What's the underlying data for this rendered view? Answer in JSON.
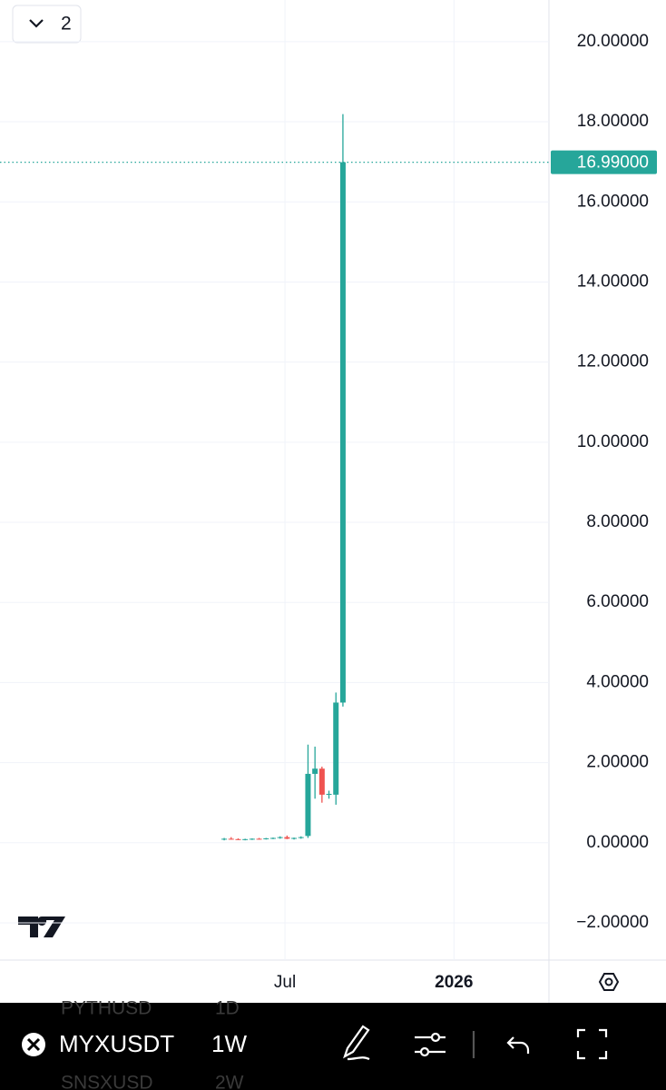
{
  "chart_data": {
    "type": "candlestick",
    "categories": [
      null,
      null,
      null,
      null,
      null,
      null,
      null,
      null,
      null,
      null,
      null,
      null,
      null,
      null,
      null,
      null,
      null,
      null
    ],
    "series": [
      {
        "name": "open",
        "values": [
          0.08,
          0.1,
          0.09,
          0.08,
          0.09,
          0.1,
          0.09,
          0.11,
          0.12,
          0.14,
          0.1,
          0.12,
          0.17,
          1.72,
          1.85,
          1.2,
          1.2,
          3.5
        ]
      },
      {
        "name": "high",
        "values": [
          0.12,
          0.14,
          0.11,
          0.1,
          0.11,
          0.12,
          0.12,
          0.13,
          0.16,
          0.18,
          0.13,
          0.16,
          2.45,
          2.4,
          1.9,
          1.3,
          3.75,
          18.19
        ]
      },
      {
        "name": "low",
        "values": [
          0.06,
          0.08,
          0.07,
          0.06,
          0.07,
          0.08,
          0.08,
          0.09,
          0.1,
          0.09,
          0.08,
          0.1,
          0.12,
          1.1,
          1.0,
          1.1,
          0.95,
          3.4
        ]
      },
      {
        "name": "close",
        "values": [
          0.1,
          0.09,
          0.08,
          0.09,
          0.1,
          0.09,
          0.11,
          0.12,
          0.14,
          0.1,
          0.12,
          0.14,
          1.72,
          1.85,
          1.2,
          1.22,
          3.5,
          16.99
        ]
      }
    ],
    "up_color": "#26a69a",
    "down_color": "#ef5350",
    "ylim": [
      -2.93,
      21.04
    ],
    "yticks": [
      {
        "value": 20,
        "label": "20.00000"
      },
      {
        "value": 18,
        "label": "18.00000"
      },
      {
        "value": 16,
        "label": "16.00000"
      },
      {
        "value": 14,
        "label": "14.00000"
      },
      {
        "value": 12,
        "label": "12.00000"
      },
      {
        "value": 10,
        "label": "10.00000"
      },
      {
        "value": 8,
        "label": "8.00000"
      },
      {
        "value": 6,
        "label": "6.00000"
      },
      {
        "value": 4,
        "label": "4.00000"
      },
      {
        "value": 2,
        "label": "2.00000"
      },
      {
        "value": 0,
        "label": "0.00000"
      },
      {
        "value": -2,
        "label": "−2.00000"
      }
    ],
    "xlim": [
      -32.1,
      46.5
    ],
    "xticks": [
      {
        "value": 8.7,
        "label": "Jul"
      },
      {
        "value": 32.9,
        "label": "2026"
      }
    ],
    "last_price": {
      "value": 16.99,
      "label": "16.99000"
    },
    "grid": true
  },
  "ui": {
    "layout_badge": "2",
    "symbol": "MYXUSDT",
    "interval": "1W",
    "background_rows": [
      [
        "PYTHUSD",
        "1D"
      ],
      [
        "SNSXUSD",
        "2W"
      ]
    ]
  }
}
